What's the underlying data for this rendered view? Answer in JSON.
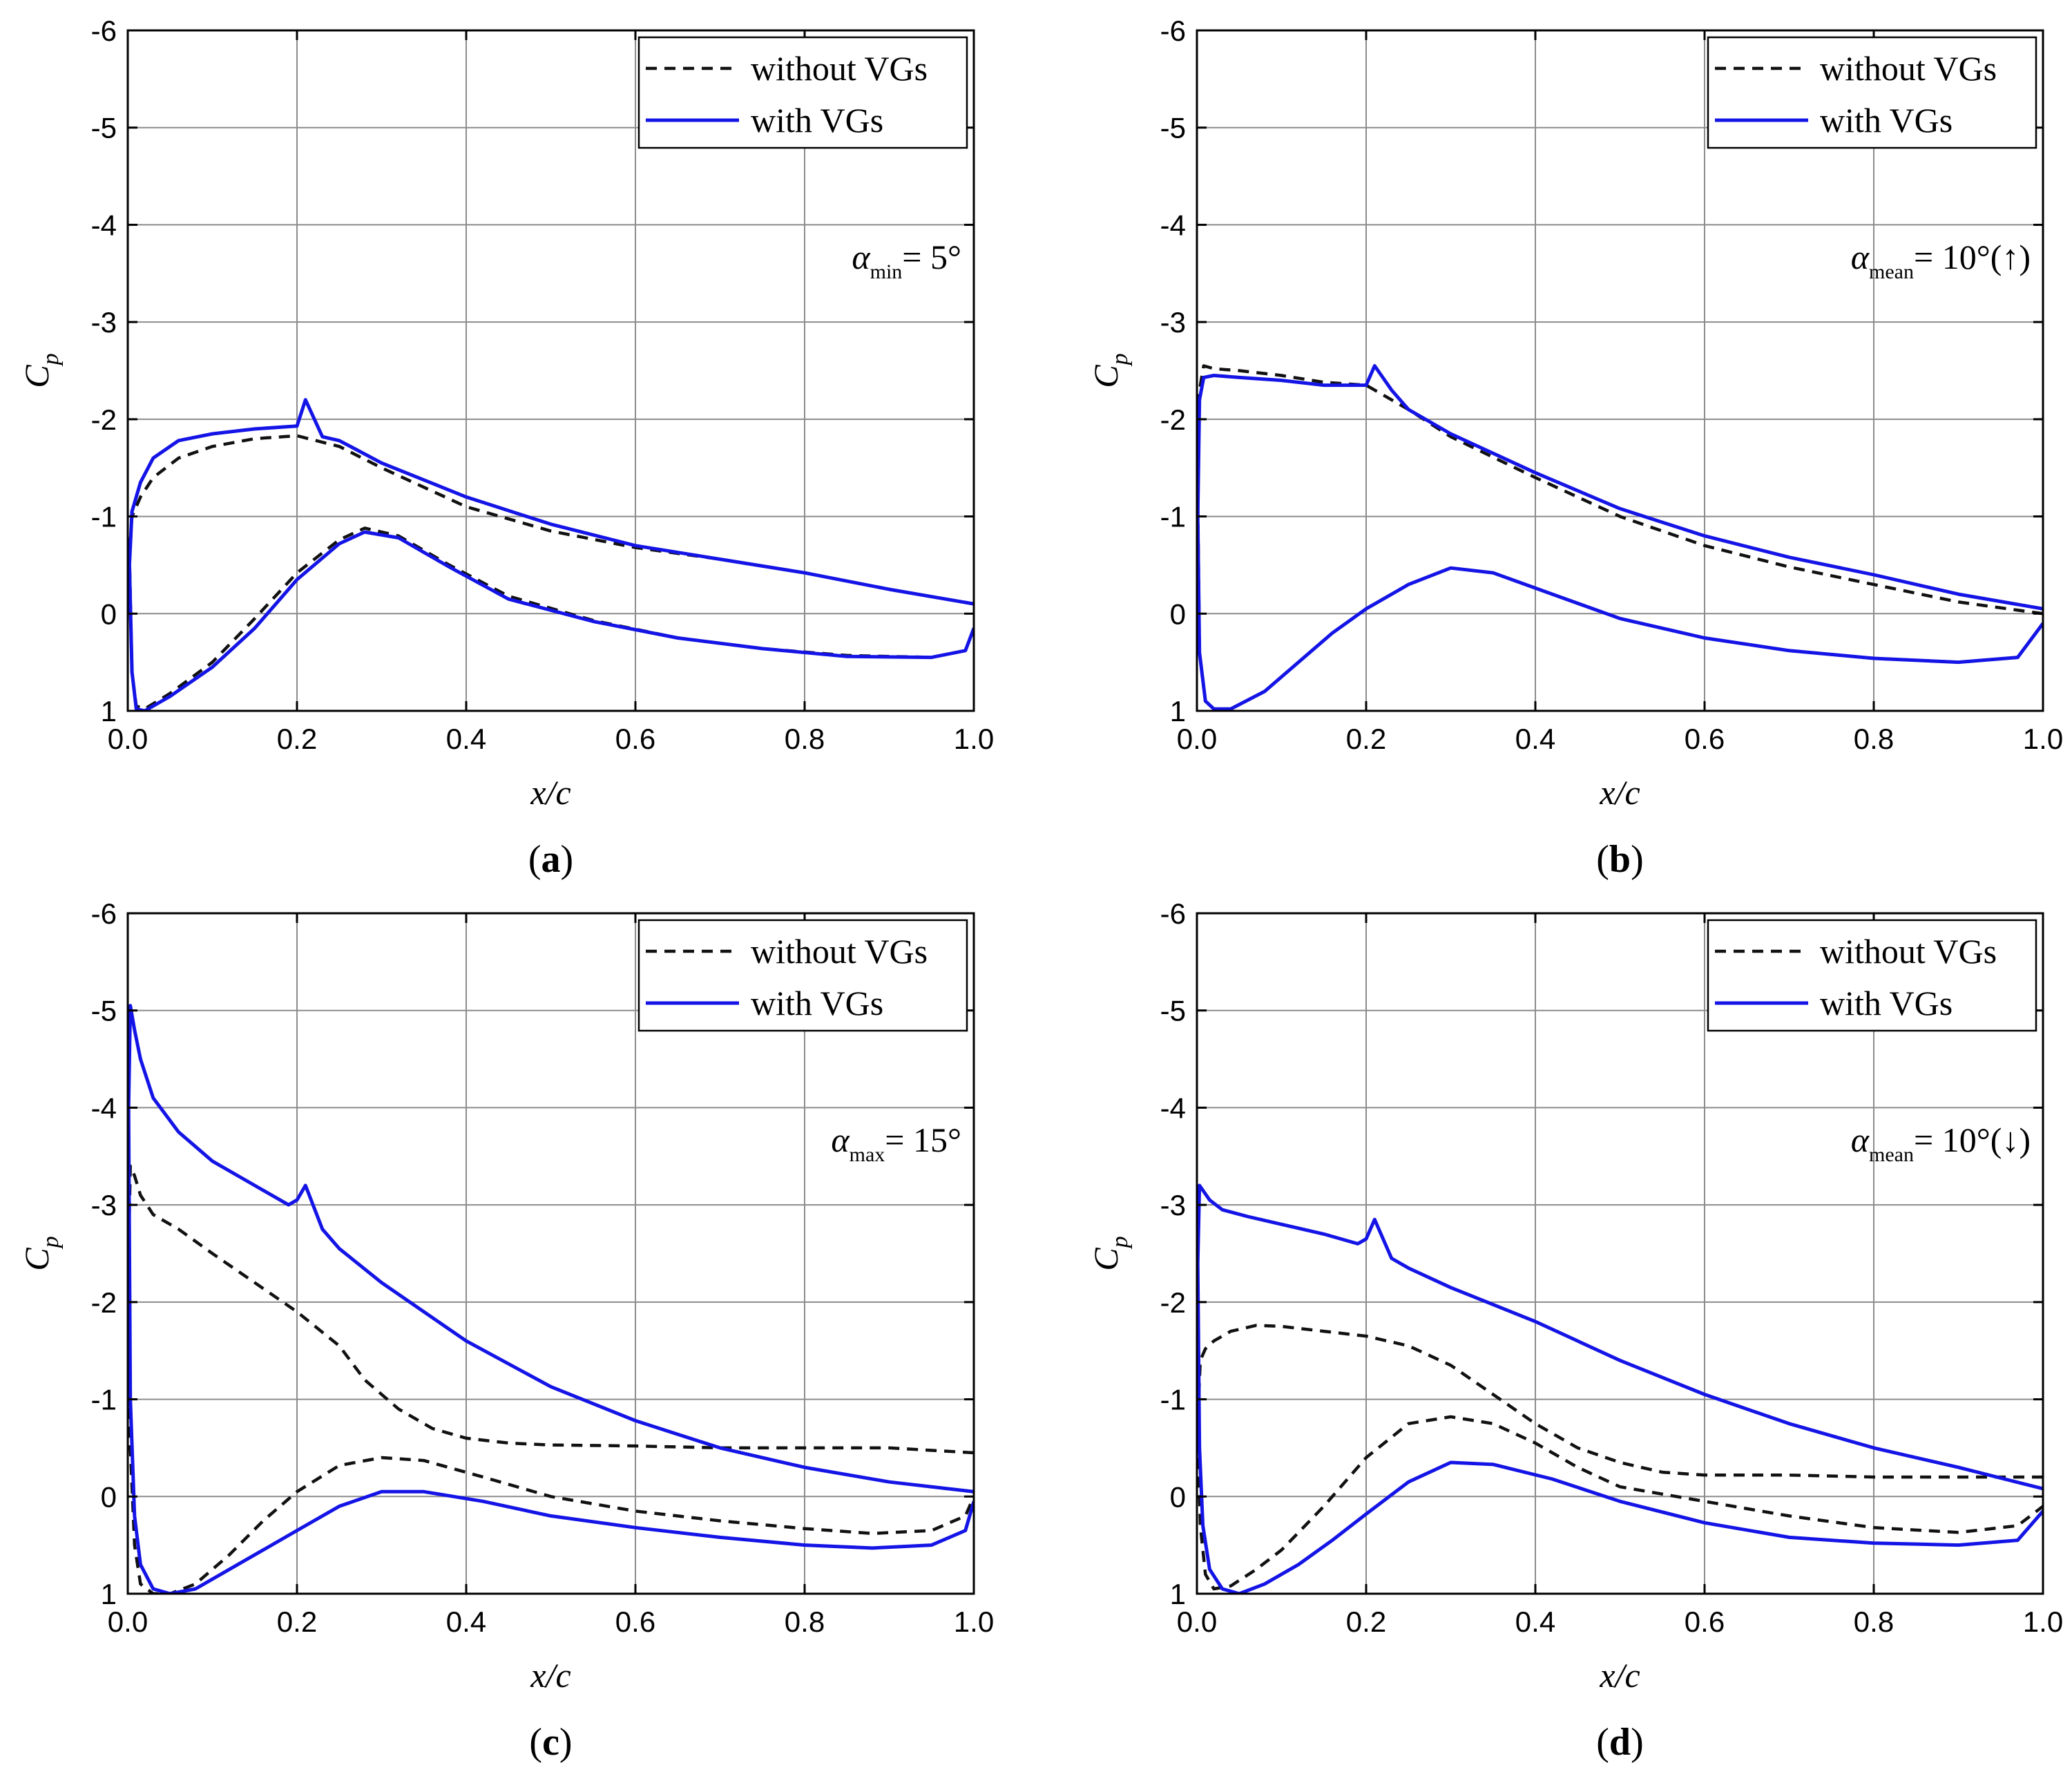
{
  "colors": {
    "with_vgs": "#1414e6",
    "without_vgs": "#111111",
    "grid": "#8c8c8c"
  },
  "chart_data": [
    {
      "id": "a",
      "type": "line",
      "panel_label": "a",
      "xlabel": "x/c",
      "ylabel": "C",
      "ylabel_sub": "p",
      "xlim": [
        0,
        1.0
      ],
      "ylim": [
        1,
        -6
      ],
      "xticks": [
        "0.0",
        "0.2",
        "0.4",
        "0.6",
        "0.8",
        "1.0"
      ],
      "yticks": [
        "-6",
        "-5",
        "-4",
        "-3",
        "-2",
        "-1",
        "0",
        "1"
      ],
      "legend": [
        "without VGs",
        "with VGs"
      ],
      "annotation": {
        "greek": "α",
        "sub": "min",
        "text": "= 5°"
      },
      "series": [
        {
          "name": "without VGs",
          "style": "dashed",
          "x": [
            1.0,
            0.9,
            0.8,
            0.7,
            0.6,
            0.5,
            0.4,
            0.3,
            0.25,
            0.2,
            0.15,
            0.1,
            0.06,
            0.03,
            0.015,
            0.005,
            0.002,
            0.005,
            0.01,
            0.02,
            0.05,
            0.1,
            0.15,
            0.2,
            0.25,
            0.28,
            0.32,
            0.38,
            0.45,
            0.55,
            0.65,
            0.75,
            0.85,
            0.95,
            0.99,
            1.0
          ],
          "y": [
            -0.1,
            -0.25,
            -0.42,
            -0.56,
            -0.68,
            -0.85,
            -1.1,
            -1.5,
            -1.72,
            -1.83,
            -1.8,
            -1.72,
            -1.6,
            -1.4,
            -1.2,
            -1.0,
            -0.6,
            0.6,
            0.95,
            0.98,
            0.82,
            0.5,
            0.05,
            -0.42,
            -0.76,
            -0.88,
            -0.8,
            -0.5,
            -0.18,
            0.07,
            0.25,
            0.36,
            0.43,
            0.45,
            0.38,
            0.15
          ]
        },
        {
          "name": "with VGs",
          "style": "solid",
          "x": [
            1.0,
            0.9,
            0.8,
            0.7,
            0.6,
            0.5,
            0.4,
            0.3,
            0.25,
            0.23,
            0.21,
            0.2,
            0.15,
            0.1,
            0.06,
            0.03,
            0.015,
            0.005,
            0.002,
            0.005,
            0.01,
            0.02,
            0.05,
            0.1,
            0.15,
            0.2,
            0.25,
            0.28,
            0.32,
            0.38,
            0.45,
            0.55,
            0.65,
            0.75,
            0.85,
            0.95,
            0.99,
            1.0
          ],
          "y": [
            -0.1,
            -0.25,
            -0.42,
            -0.56,
            -0.7,
            -0.92,
            -1.2,
            -1.55,
            -1.78,
            -1.82,
            -2.2,
            -1.93,
            -1.9,
            -1.85,
            -1.78,
            -1.6,
            -1.35,
            -1.05,
            -0.5,
            0.6,
            0.98,
            1.0,
            0.85,
            0.55,
            0.15,
            -0.35,
            -0.72,
            -0.84,
            -0.78,
            -0.48,
            -0.15,
            0.08,
            0.25,
            0.36,
            0.44,
            0.45,
            0.38,
            0.15
          ]
        }
      ]
    },
    {
      "id": "b",
      "type": "line",
      "panel_label": "b",
      "xlabel": "x/c",
      "ylabel": "C",
      "ylabel_sub": "p",
      "xlim": [
        0,
        1.0
      ],
      "ylim": [
        1,
        -6
      ],
      "xticks": [
        "0.0",
        "0.2",
        "0.4",
        "0.6",
        "0.8",
        "1.0"
      ],
      "yticks": [
        "-6",
        "-5",
        "-4",
        "-3",
        "-2",
        "-1",
        "0",
        "1"
      ],
      "legend": [
        "without VGs",
        "with VGs"
      ],
      "annotation": {
        "greek": "α",
        "sub": "mean",
        "text": "= 10°(↑)"
      },
      "series": [
        {
          "name": "without VGs",
          "style": "dashed",
          "x": [
            1.0,
            0.9,
            0.8,
            0.7,
            0.6,
            0.5,
            0.4,
            0.3,
            0.25,
            0.2,
            0.15,
            0.1,
            0.05,
            0.02,
            0.008,
            0.003,
            0.001,
            0.003,
            0.01,
            0.02,
            0.04,
            0.08,
            0.12,
            0.16,
            0.2,
            0.25,
            0.3,
            0.35,
            0.42,
            0.5,
            0.6,
            0.7,
            0.8,
            0.9,
            0.97,
            1.0
          ],
          "y": [
            0.0,
            -0.12,
            -0.3,
            -0.48,
            -0.7,
            -1.0,
            -1.4,
            -1.82,
            -2.1,
            -2.35,
            -2.38,
            -2.45,
            -2.5,
            -2.52,
            -2.55,
            -2.3,
            -1.2,
            0.4,
            0.9,
            0.98,
            0.98,
            0.8,
            0.5,
            0.2,
            -0.05,
            -0.3,
            -0.47,
            -0.42,
            -0.2,
            0.05,
            0.25,
            0.38,
            0.46,
            0.5,
            0.45,
            0.1
          ]
        },
        {
          "name": "with VGs",
          "style": "solid",
          "x": [
            1.0,
            0.9,
            0.8,
            0.7,
            0.6,
            0.5,
            0.4,
            0.3,
            0.25,
            0.23,
            0.21,
            0.2,
            0.15,
            0.1,
            0.05,
            0.02,
            0.008,
            0.003,
            0.001,
            0.003,
            0.01,
            0.02,
            0.04,
            0.08,
            0.12,
            0.16,
            0.2,
            0.25,
            0.3,
            0.35,
            0.42,
            0.5,
            0.6,
            0.7,
            0.8,
            0.9,
            0.97,
            1.0
          ],
          "y": [
            -0.05,
            -0.2,
            -0.4,
            -0.58,
            -0.8,
            -1.08,
            -1.45,
            -1.85,
            -2.1,
            -2.3,
            -2.55,
            -2.35,
            -2.35,
            -2.4,
            -2.43,
            -2.45,
            -2.43,
            -2.2,
            -1.0,
            0.4,
            0.9,
            0.98,
            0.98,
            0.8,
            0.5,
            0.2,
            -0.05,
            -0.3,
            -0.47,
            -0.42,
            -0.2,
            0.05,
            0.25,
            0.38,
            0.46,
            0.5,
            0.45,
            0.1
          ]
        }
      ]
    },
    {
      "id": "c",
      "type": "line",
      "panel_label": "c",
      "xlabel": "x/c",
      "ylabel": "C",
      "ylabel_sub": "p",
      "xlim": [
        0,
        1.0
      ],
      "ylim": [
        1,
        -6
      ],
      "xticks": [
        "0.0",
        "0.2",
        "0.4",
        "0.6",
        "0.8",
        "1.0"
      ],
      "yticks": [
        "-6",
        "-5",
        "-4",
        "-3",
        "-2",
        "-1",
        "0",
        "1"
      ],
      "legend": [
        "without VGs",
        "with VGs"
      ],
      "annotation": {
        "greek": "α",
        "sub": "max",
        "text": "= 15°"
      },
      "series": [
        {
          "name": "without VGs",
          "style": "dashed",
          "x": [
            1.0,
            0.9,
            0.8,
            0.7,
            0.6,
            0.5,
            0.45,
            0.4,
            0.36,
            0.32,
            0.28,
            0.25,
            0.2,
            0.15,
            0.1,
            0.06,
            0.03,
            0.015,
            0.008,
            0.003,
            0.001,
            0.003,
            0.008,
            0.015,
            0.03,
            0.05,
            0.08,
            0.12,
            0.16,
            0.2,
            0.25,
            0.3,
            0.35,
            0.42,
            0.5,
            0.6,
            0.7,
            0.8,
            0.88,
            0.95,
            0.99,
            1.0
          ],
          "y": [
            -0.45,
            -0.5,
            -0.5,
            -0.5,
            -0.52,
            -0.53,
            -0.55,
            -0.6,
            -0.7,
            -0.9,
            -1.2,
            -1.55,
            -1.9,
            -2.2,
            -2.5,
            -2.75,
            -2.9,
            -3.1,
            -3.3,
            -3.4,
            -2.5,
            -0.5,
            0.5,
            0.9,
            1.0,
            1.0,
            0.9,
            0.6,
            0.25,
            -0.05,
            -0.32,
            -0.4,
            -0.37,
            -0.2,
            0.0,
            0.15,
            0.25,
            0.33,
            0.38,
            0.35,
            0.2,
            0.0
          ]
        },
        {
          "name": "with VGs",
          "style": "solid",
          "x": [
            1.0,
            0.9,
            0.8,
            0.7,
            0.6,
            0.5,
            0.4,
            0.3,
            0.25,
            0.23,
            0.21,
            0.2,
            0.19,
            0.15,
            0.1,
            0.06,
            0.03,
            0.015,
            0.008,
            0.003,
            0.001,
            0.003,
            0.008,
            0.015,
            0.03,
            0.05,
            0.08,
            0.12,
            0.16,
            0.2,
            0.25,
            0.3,
            0.35,
            0.42,
            0.5,
            0.6,
            0.7,
            0.8,
            0.88,
            0.95,
            0.99,
            1.0
          ],
          "y": [
            -0.05,
            -0.15,
            -0.3,
            -0.5,
            -0.78,
            -1.13,
            -1.6,
            -2.2,
            -2.55,
            -2.75,
            -3.2,
            -3.05,
            -3.0,
            -3.2,
            -3.45,
            -3.75,
            -4.1,
            -4.5,
            -4.8,
            -5.05,
            -4.0,
            -1.0,
            0.2,
            0.7,
            0.95,
            1.0,
            0.95,
            0.75,
            0.55,
            0.35,
            0.1,
            -0.05,
            -0.05,
            0.05,
            0.2,
            0.32,
            0.42,
            0.5,
            0.53,
            0.5,
            0.35,
            0.05
          ]
        }
      ]
    },
    {
      "id": "d",
      "type": "line",
      "panel_label": "d",
      "xlabel": "x/c",
      "ylabel": "C",
      "ylabel_sub": "p",
      "xlim": [
        0,
        1.0
      ],
      "ylim": [
        1,
        -6
      ],
      "xticks": [
        "0.0",
        "0.2",
        "0.4",
        "0.6",
        "0.8",
        "1.0"
      ],
      "yticks": [
        "-6",
        "-5",
        "-4",
        "-3",
        "-2",
        "-1",
        "0",
        "1"
      ],
      "legend": [
        "without VGs",
        "with VGs"
      ],
      "annotation": {
        "greek": "α",
        "sub": "mean",
        "text": "= 10°(↓)"
      },
      "series": [
        {
          "name": "without VGs",
          "style": "dashed",
          "x": [
            1.0,
            0.9,
            0.8,
            0.7,
            0.6,
            0.55,
            0.5,
            0.45,
            0.4,
            0.35,
            0.3,
            0.25,
            0.2,
            0.15,
            0.1,
            0.07,
            0.04,
            0.02,
            0.01,
            0.004,
            0.001,
            0.004,
            0.01,
            0.02,
            0.04,
            0.07,
            0.1,
            0.15,
            0.2,
            0.25,
            0.3,
            0.35,
            0.4,
            0.45,
            0.5,
            0.6,
            0.7,
            0.8,
            0.9,
            0.97,
            1.0
          ],
          "y": [
            -0.2,
            -0.2,
            -0.2,
            -0.22,
            -0.22,
            -0.25,
            -0.35,
            -0.5,
            -0.75,
            -1.05,
            -1.35,
            -1.55,
            -1.65,
            -1.7,
            -1.75,
            -1.76,
            -1.7,
            -1.6,
            -1.52,
            -1.4,
            -0.8,
            0.3,
            0.8,
            0.95,
            0.92,
            0.75,
            0.55,
            0.1,
            -0.4,
            -0.75,
            -0.82,
            -0.75,
            -0.55,
            -0.3,
            -0.1,
            0.05,
            0.2,
            0.32,
            0.37,
            0.3,
            0.1
          ]
        },
        {
          "name": "with VGs",
          "style": "solid",
          "x": [
            1.0,
            0.9,
            0.8,
            0.7,
            0.6,
            0.5,
            0.4,
            0.3,
            0.25,
            0.23,
            0.21,
            0.2,
            0.19,
            0.15,
            0.1,
            0.06,
            0.03,
            0.015,
            0.007,
            0.003,
            0.001,
            0.003,
            0.007,
            0.015,
            0.03,
            0.05,
            0.08,
            0.12,
            0.16,
            0.2,
            0.25,
            0.3,
            0.35,
            0.42,
            0.5,
            0.6,
            0.7,
            0.8,
            0.9,
            0.97,
            1.0
          ],
          "y": [
            -0.08,
            -0.3,
            -0.5,
            -0.75,
            -1.05,
            -1.4,
            -1.8,
            -2.15,
            -2.35,
            -2.45,
            -2.85,
            -2.65,
            -2.6,
            -2.7,
            -2.8,
            -2.88,
            -2.95,
            -3.05,
            -3.15,
            -3.2,
            -2.4,
            -0.5,
            0.3,
            0.75,
            0.95,
            1.0,
            0.9,
            0.7,
            0.45,
            0.18,
            -0.15,
            -0.35,
            -0.33,
            -0.18,
            0.05,
            0.27,
            0.42,
            0.48,
            0.5,
            0.45,
            0.15
          ]
        }
      ]
    }
  ]
}
